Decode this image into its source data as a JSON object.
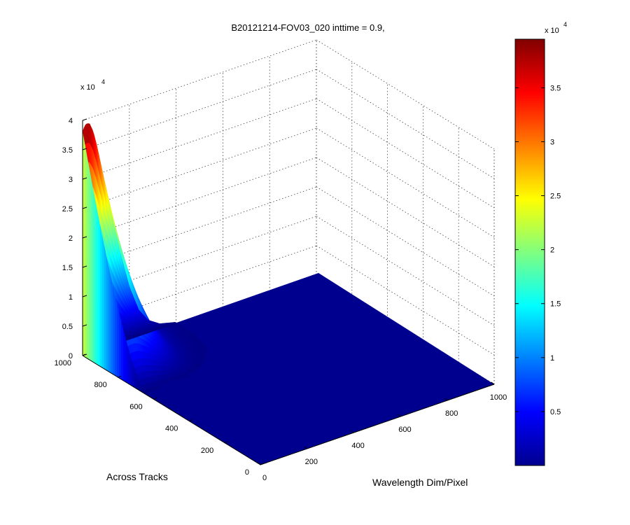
{
  "chart_data": {
    "type": "surface",
    "title": "B20121214-FOV03_020 inttime = 0.9,",
    "xlabel": "Wavelength Dim/Pixel",
    "ylabel": "Across Tracks",
    "zlabel": "",
    "x_ticks": [
      0,
      200,
      400,
      600,
      800,
      1000
    ],
    "y_ticks": [
      0,
      200,
      400,
      600,
      800,
      1000
    ],
    "z_ticks": [
      "0",
      "0.5",
      "1",
      "1.5",
      "2",
      "2.5",
      "3",
      "3.5",
      "4"
    ],
    "z_multiplier": "x 10",
    "z_exponent": "4",
    "xlim": [
      0,
      1000
    ],
    "ylim": [
      0,
      1000
    ],
    "zlim": [
      0,
      40000
    ],
    "grid": true,
    "colormap": "jet",
    "colorbar": {
      "ticks": [
        "0.5",
        "1",
        "1.5",
        "2",
        "2.5",
        "3",
        "3.5"
      ],
      "multiplier": "x 10",
      "exponent": "4",
      "range": [
        0,
        39500
      ]
    },
    "surface_profile": {
      "description_axis": "value along Wavelength at Across Tracks = 1000 edge",
      "wavelength": [
        0,
        10,
        20,
        30,
        45,
        60,
        80,
        100,
        130,
        160,
        200,
        240,
        280,
        330,
        400
      ],
      "value": [
        38000,
        39000,
        39200,
        39000,
        37500,
        35000,
        31000,
        27000,
        21000,
        15500,
        9000,
        4500,
        2200,
        900,
        200
      ]
    }
  }
}
